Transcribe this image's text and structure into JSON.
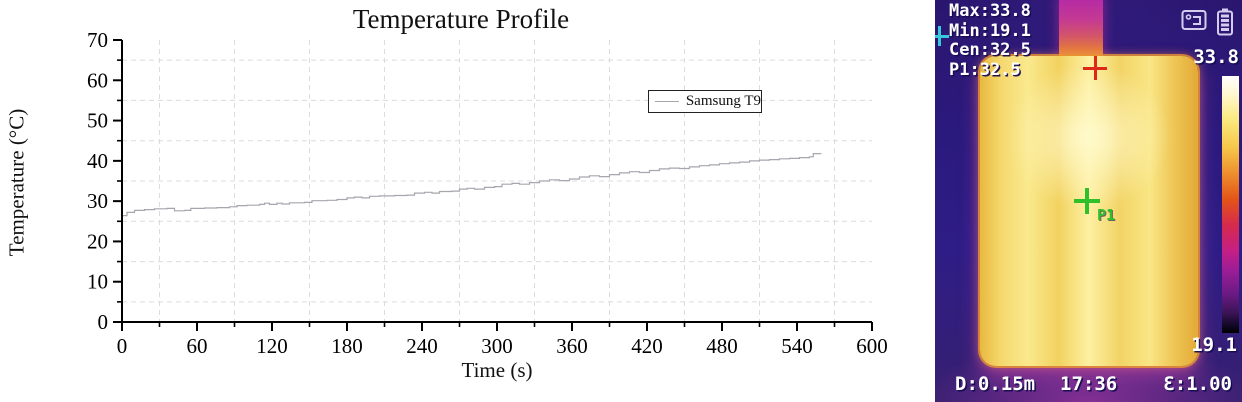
{
  "colors": {
    "line": "#a6a6ae",
    "grid": "#dcdcdc",
    "axis": "#000000",
    "marker_red": "#e02818",
    "marker_green": "#2fc02a",
    "marker_cyan": "#38c8dc",
    "overlay_text": "#ffffff",
    "thermal_background": "#2b1a7e"
  },
  "chart_data": {
    "type": "line",
    "title": "Temperature Profile",
    "xlabel": "Time (s)",
    "ylabel": "Temperature (°C)",
    "xlim": [
      0,
      600
    ],
    "ylim": [
      0,
      70
    ],
    "x_ticks": [
      0,
      60,
      120,
      180,
      240,
      300,
      360,
      420,
      480,
      540,
      600
    ],
    "x_minor_ticks": [
      30,
      90,
      150,
      210,
      270,
      330,
      390,
      450,
      510,
      570
    ],
    "y_ticks": [
      0,
      10,
      20,
      30,
      40,
      50,
      60,
      70
    ],
    "y_minor_ticks": [
      5,
      15,
      25,
      35,
      45,
      55,
      65
    ],
    "grid": "dashed gridlines at minor ticks only",
    "legend_position": "inside upper-right",
    "series": [
      {
        "name": "Samsung T9",
        "color": "#a6a6ae",
        "interpolation": "step-after",
        "points": [
          [
            0,
            26.4
          ],
          [
            4,
            27.2
          ],
          [
            10,
            27.7
          ],
          [
            18,
            27.9
          ],
          [
            26,
            28.1
          ],
          [
            36,
            28.2
          ],
          [
            42,
            27.6
          ],
          [
            50,
            27.7
          ],
          [
            55,
            28.2
          ],
          [
            66,
            28.3
          ],
          [
            76,
            28.4
          ],
          [
            86,
            28.6
          ],
          [
            92,
            28.9
          ],
          [
            100,
            29.0
          ],
          [
            110,
            29.2
          ],
          [
            114,
            29.5
          ],
          [
            118,
            29.2
          ],
          [
            124,
            29.5
          ],
          [
            128,
            29.3
          ],
          [
            134,
            29.6
          ],
          [
            146,
            29.7
          ],
          [
            152,
            30.1
          ],
          [
            164,
            30.2
          ],
          [
            172,
            30.4
          ],
          [
            180,
            30.8
          ],
          [
            186,
            31.0
          ],
          [
            192,
            30.8
          ],
          [
            198,
            31.2
          ],
          [
            206,
            31.3
          ],
          [
            218,
            31.4
          ],
          [
            228,
            31.5
          ],
          [
            234,
            32.0
          ],
          [
            242,
            32.2
          ],
          [
            248,
            32.0
          ],
          [
            254,
            32.4
          ],
          [
            264,
            32.5
          ],
          [
            270,
            33.0
          ],
          [
            276,
            33.2
          ],
          [
            282,
            33.0
          ],
          [
            290,
            33.4
          ],
          [
            298,
            33.6
          ],
          [
            304,
            34.2
          ],
          [
            312,
            34.4
          ],
          [
            318,
            34.2
          ],
          [
            326,
            34.6
          ],
          [
            334,
            35.0
          ],
          [
            342,
            35.3
          ],
          [
            350,
            35.1
          ],
          [
            358,
            35.5
          ],
          [
            366,
            36.0
          ],
          [
            374,
            36.3
          ],
          [
            382,
            36.1
          ],
          [
            390,
            36.6
          ],
          [
            398,
            37.0
          ],
          [
            406,
            37.3
          ],
          [
            414,
            37.1
          ],
          [
            422,
            37.6
          ],
          [
            430,
            38.0
          ],
          [
            438,
            38.2
          ],
          [
            446,
            38.1
          ],
          [
            454,
            38.5
          ],
          [
            462,
            38.8
          ],
          [
            470,
            39.0
          ],
          [
            478,
            39.3
          ],
          [
            486,
            39.5
          ],
          [
            494,
            39.7
          ],
          [
            502,
            40.0
          ],
          [
            510,
            40.2
          ],
          [
            518,
            40.3
          ],
          [
            526,
            40.5
          ],
          [
            534,
            40.6
          ],
          [
            542,
            40.8
          ],
          [
            550,
            41.0
          ],
          [
            553,
            41.8
          ],
          [
            559,
            41.9
          ]
        ]
      }
    ]
  },
  "thermal": {
    "readings": [
      "Max:33.8",
      "Min:19.1",
      "Cen:32.5",
      "P1:32.5"
    ],
    "colorbar": {
      "max": "33.8",
      "min": "19.1"
    },
    "markers": {
      "p1_label": "P1"
    },
    "footer": {
      "distance": "D:0.15m",
      "time": "17:36",
      "emissivity": "Ɛ:1.00"
    }
  }
}
